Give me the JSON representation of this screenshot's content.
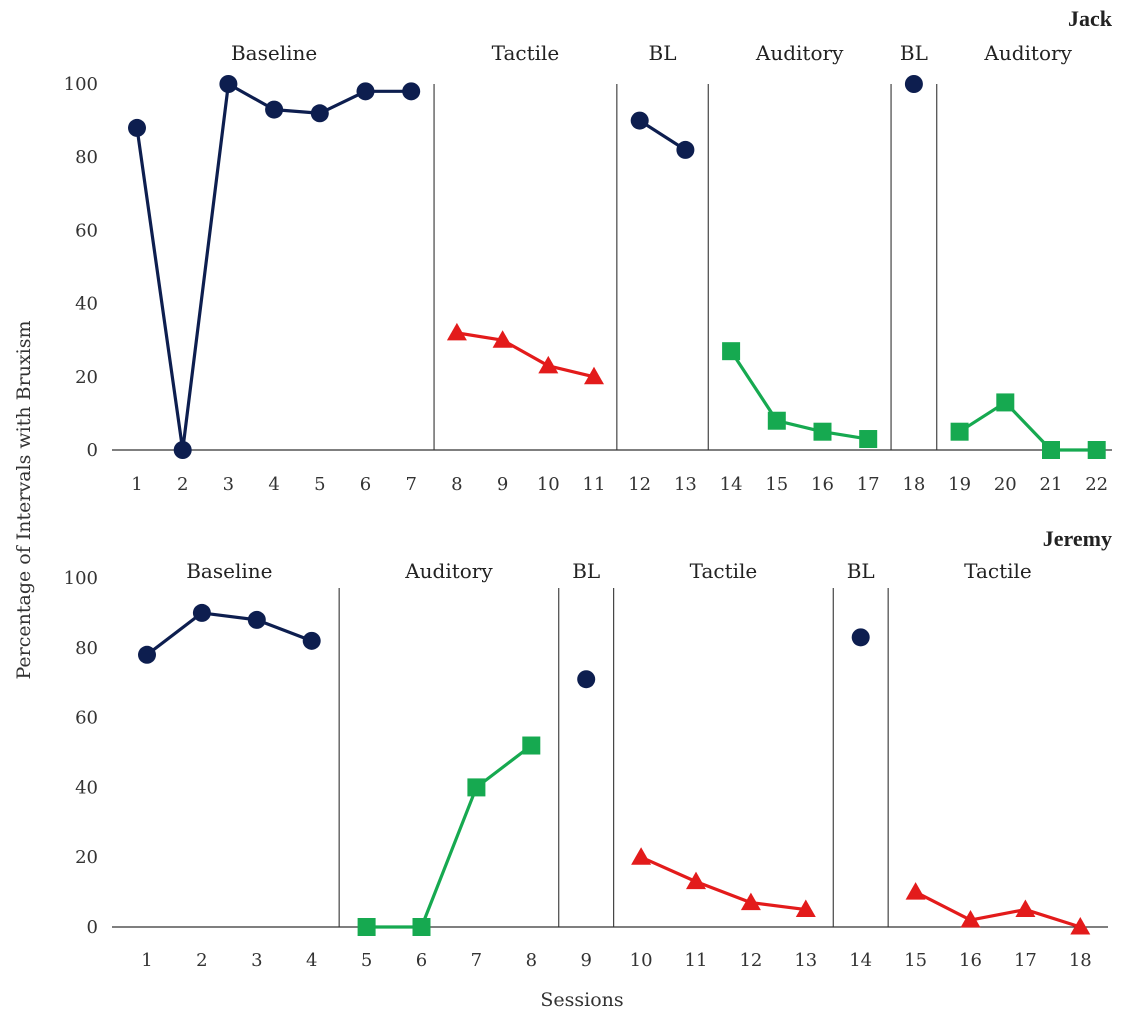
{
  "chart_data": {
    "type": "line",
    "ylabel": "Percentage of Intervals with Bruxism",
    "xlabel": "Sessions",
    "ylim": [
      0,
      100
    ],
    "y_ticks": [
      "0",
      "20",
      "40",
      "60",
      "80",
      "100"
    ],
    "colors": {
      "baseline": "#0d1e4f",
      "tactile": "#e31b1b",
      "auditory": "#16a950",
      "axis": "#333333"
    },
    "panels": [
      {
        "title": "Jack",
        "sessions": [
          "1",
          "2",
          "3",
          "4",
          "5",
          "6",
          "7",
          "8",
          "9",
          "10",
          "11",
          "12",
          "13",
          "14",
          "15",
          "16",
          "17",
          "18",
          "19",
          "20",
          "21",
          "22"
        ],
        "phases": [
          {
            "label": "Baseline",
            "start": 1,
            "end": 7
          },
          {
            "label": "Tactile",
            "start": 8,
            "end": 11
          },
          {
            "label": "BL",
            "start": 12,
            "end": 13
          },
          {
            "label": "Auditory",
            "start": 14,
            "end": 17
          },
          {
            "label": "BL",
            "start": 18,
            "end": 18
          },
          {
            "label": "Auditory",
            "start": 19,
            "end": 22
          }
        ],
        "series": [
          {
            "condition": "baseline",
            "marker": "circle",
            "x": [
              1,
              2,
              3,
              4,
              5,
              6,
              7
            ],
            "y": [
              88,
              0,
              100,
              93,
              92,
              98,
              98
            ]
          },
          {
            "condition": "tactile",
            "marker": "triangle",
            "x": [
              8,
              9,
              10,
              11
            ],
            "y": [
              32,
              30,
              23,
              20
            ]
          },
          {
            "condition": "baseline",
            "marker": "circle",
            "x": [
              12,
              13
            ],
            "y": [
              90,
              82
            ]
          },
          {
            "condition": "auditory",
            "marker": "square",
            "x": [
              14,
              15,
              16,
              17
            ],
            "y": [
              27,
              8,
              5,
              3
            ]
          },
          {
            "condition": "baseline",
            "marker": "circle",
            "x": [
              18
            ],
            "y": [
              100
            ]
          },
          {
            "condition": "auditory",
            "marker": "square",
            "x": [
              19,
              20,
              21,
              22
            ],
            "y": [
              5,
              13,
              0,
              0
            ]
          }
        ]
      },
      {
        "title": "Jeremy",
        "sessions": [
          "1",
          "2",
          "3",
          "4",
          "5",
          "6",
          "7",
          "8",
          "9",
          "10",
          "11",
          "12",
          "13",
          "14",
          "15",
          "16",
          "17",
          "18"
        ],
        "phases": [
          {
            "label": "Baseline",
            "start": 1,
            "end": 4
          },
          {
            "label": "Auditory",
            "start": 5,
            "end": 8
          },
          {
            "label": "BL",
            "start": 9,
            "end": 9
          },
          {
            "label": "Tactile",
            "start": 10,
            "end": 13
          },
          {
            "label": "BL",
            "start": 14,
            "end": 14
          },
          {
            "label": "Tactile",
            "start": 15,
            "end": 18
          }
        ],
        "series": [
          {
            "condition": "baseline",
            "marker": "circle",
            "x": [
              1,
              2,
              3,
              4
            ],
            "y": [
              78,
              90,
              88,
              82
            ]
          },
          {
            "condition": "auditory",
            "marker": "square",
            "x": [
              5,
              6,
              7,
              8
            ],
            "y": [
              0,
              0,
              40,
              52
            ]
          },
          {
            "condition": "baseline",
            "marker": "circle",
            "x": [
              9
            ],
            "y": [
              71
            ]
          },
          {
            "condition": "tactile",
            "marker": "triangle",
            "x": [
              10,
              11,
              12,
              13
            ],
            "y": [
              20,
              13,
              7,
              5
            ]
          },
          {
            "condition": "baseline",
            "marker": "circle",
            "x": [
              14
            ],
            "y": [
              83
            ]
          },
          {
            "condition": "tactile",
            "marker": "triangle",
            "x": [
              15,
              16,
              17,
              18
            ],
            "y": [
              10,
              2,
              5,
              0
            ]
          }
        ]
      }
    ]
  }
}
